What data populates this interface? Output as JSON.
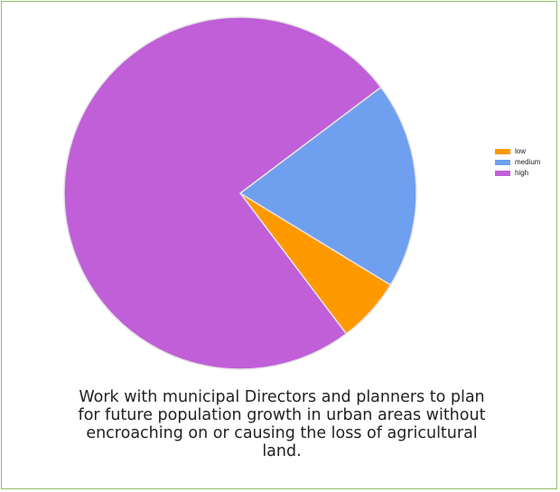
{
  "chart_data": {
    "type": "pie",
    "title": "",
    "categories": [
      "low",
      "medium",
      "high"
    ],
    "values": [
      6,
      19,
      75
    ],
    "colors": [
      "#ff9900",
      "#6f9fef",
      "#c05fd8"
    ],
    "start_angle_deg": 143,
    "legend_position": "right"
  },
  "caption": {
    "text": "Work with municipal Directors and planners to plan for future population growth in urban areas without encroaching on or causing the loss of agricultural land."
  }
}
